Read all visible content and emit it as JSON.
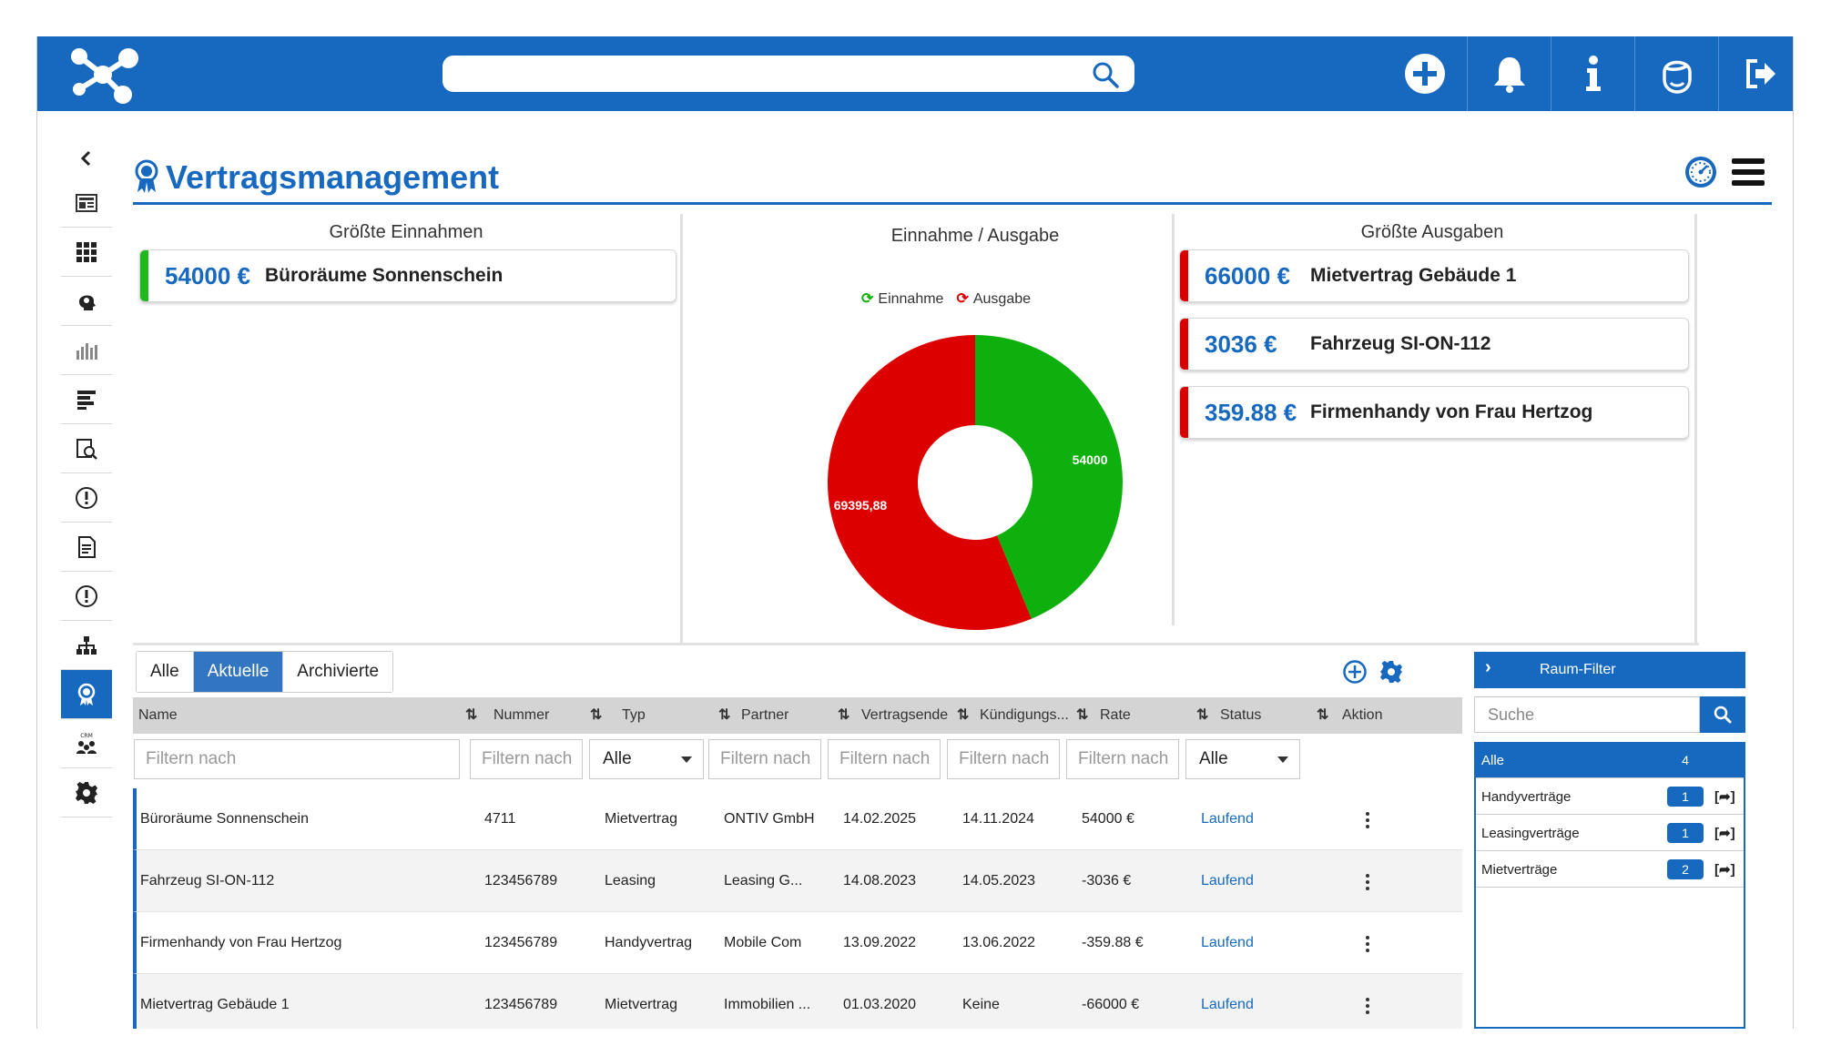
{
  "search": {
    "placeholder": ""
  },
  "page_title": "Vertragsmanagement",
  "income_panel": {
    "title": "Größte Einnahmen",
    "items": [
      {
        "amount": "54000 €",
        "name": "Büroräume Sonnenschein",
        "color": "#1fb81f"
      }
    ]
  },
  "expense_panel": {
    "title": "Größte Ausgaben",
    "items": [
      {
        "amount": "66000 €",
        "name": "Mietvertrag Gebäude 1",
        "color": "#d90000"
      },
      {
        "amount": "3036 €",
        "name": "Fahrzeug SI-ON-112",
        "color": "#d90000"
      },
      {
        "amount": "359.88 €",
        "name": "Firmenhandy von Frau Hertzog",
        "color": "#d90000"
      }
    ]
  },
  "chart_data": {
    "type": "pie",
    "title": "Einnahme / Ausgabe",
    "legend": [
      "Einnahme",
      "Ausgabe"
    ],
    "legend_placement": "top",
    "series": [
      {
        "name": "Einnahme",
        "value": 54000,
        "label": "54000",
        "color": "#0db00d"
      },
      {
        "name": "Ausgabe",
        "value": 69395.88,
        "label": "69395,88",
        "color": "#dd0000"
      }
    ]
  },
  "tabs": [
    "Alle",
    "Aktuelle",
    "Archivierte"
  ],
  "active_tab": "Aktuelle",
  "table": {
    "columns": [
      "Name",
      "Nummer",
      "Typ",
      "Partner",
      "Vertragsende",
      "Kündigungs...",
      "Rate",
      "Status",
      "Aktion"
    ],
    "filter_placeholders": {
      "name": "Filtern nach",
      "short": "Filtern nach"
    },
    "select_all": "Alle",
    "rows": [
      {
        "name": "Büroräume Sonnenschein",
        "nummer": "4711",
        "typ": "Mietvertrag",
        "partner": "ONTIV GmbH",
        "ende": "14.02.2025",
        "kuendigung": "14.11.2024",
        "rate": "54000  €",
        "status": "Laufend"
      },
      {
        "name": "Fahrzeug SI-ON-112",
        "nummer": "123456789",
        "typ": "Leasing",
        "partner": "Leasing G...",
        "ende": "14.08.2023",
        "kuendigung": "14.05.2023",
        "rate": "-3036  €",
        "status": "Laufend"
      },
      {
        "name": "Firmenhandy von Frau Hertzog",
        "nummer": "123456789",
        "typ": "Handyvertrag",
        "partner": "Mobile Com",
        "ende": "13.09.2022",
        "kuendigung": "13.06.2022",
        "rate": "-359.88  €",
        "status": "Laufend"
      },
      {
        "name": "Mietvertrag Gebäude 1",
        "nummer": "123456789",
        "typ": "Mietvertrag",
        "partner": "Immobilien ...",
        "ende": "01.03.2020",
        "kuendigung": "Keine",
        "rate": "-66000  €",
        "status": "Laufend"
      }
    ]
  },
  "room_filter": {
    "title": "Raum-Filter",
    "search_placeholder": "Suche",
    "items": [
      {
        "name": "Alle",
        "count": "4"
      },
      {
        "name": "Handyverträge",
        "count": "1"
      },
      {
        "name": "Leasingverträge",
        "count": "1"
      },
      {
        "name": "Mietverträge",
        "count": "2"
      }
    ]
  },
  "colors": {
    "brand": "#1769c0",
    "income": "#0db00d",
    "expense": "#dd0000"
  }
}
